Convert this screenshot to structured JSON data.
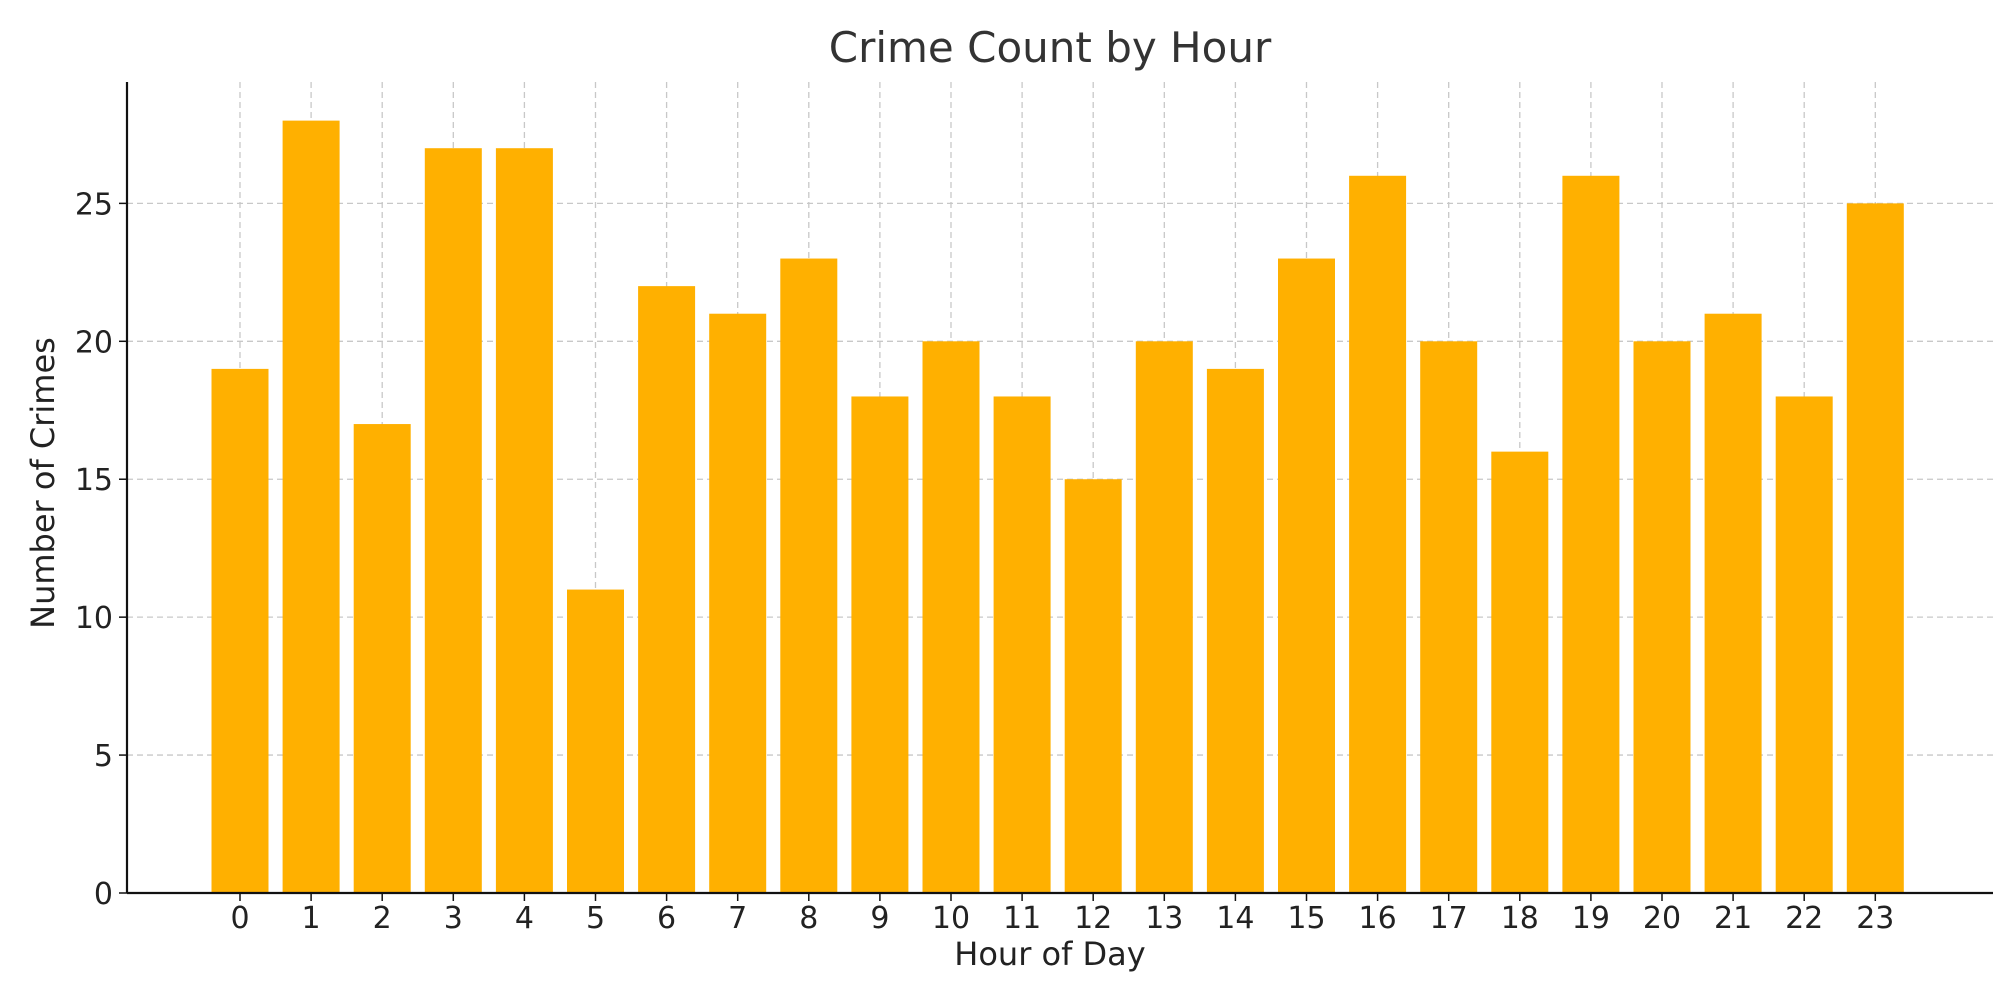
{
  "chart_data": {
    "type": "bar",
    "title": "Crime Count by Hour",
    "xlabel": "Hour of Day",
    "ylabel": "Number of Crimes",
    "categories": [
      "0",
      "1",
      "2",
      "3",
      "4",
      "5",
      "6",
      "7",
      "8",
      "9",
      "10",
      "11",
      "12",
      "13",
      "14",
      "15",
      "16",
      "17",
      "18",
      "19",
      "20",
      "21",
      "22",
      "23"
    ],
    "values": [
      19,
      28,
      17,
      27,
      27,
      11,
      22,
      21,
      23,
      18,
      20,
      18,
      15,
      20,
      19,
      23,
      26,
      20,
      16,
      26,
      20,
      21,
      18,
      25
    ],
    "y_ticks": [
      "0",
      "5",
      "10",
      "15",
      "20",
      "25"
    ],
    "ylim": [
      0,
      29.4
    ],
    "grid": true,
    "bar_color": "#FFB000"
  }
}
